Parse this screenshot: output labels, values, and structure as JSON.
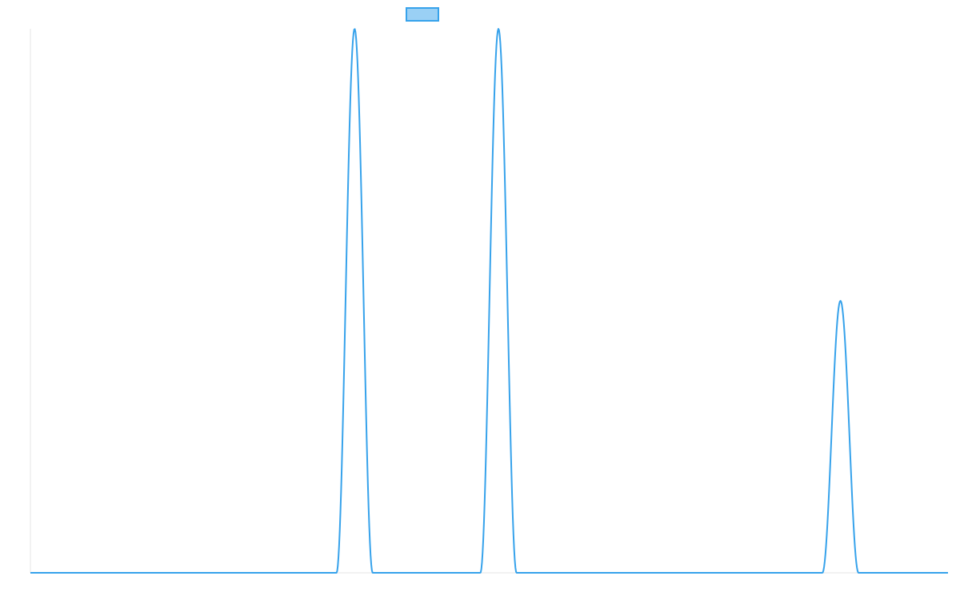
{
  "chart_data": {
    "type": "line",
    "title": "",
    "xlabel": "",
    "ylabel": "",
    "xlim": [
      0,
      100
    ],
    "ylim": [
      0,
      1
    ],
    "grid": false,
    "legend": {
      "placement": "top-center",
      "show_text": false
    },
    "colors": {
      "line": "#36A2EB",
      "legend_fill": "#9AD0F5",
      "axis": "#E5E5E5"
    },
    "series": [
      {
        "peaks": [
          {
            "center": 35.33,
            "half_width": 1.97,
            "height": 1.0
          },
          {
            "center": 51.01,
            "half_width": 1.97,
            "height": 1.0
          },
          {
            "center": 88.28,
            "half_width": 1.97,
            "height": 0.5
          }
        ]
      }
    ]
  }
}
